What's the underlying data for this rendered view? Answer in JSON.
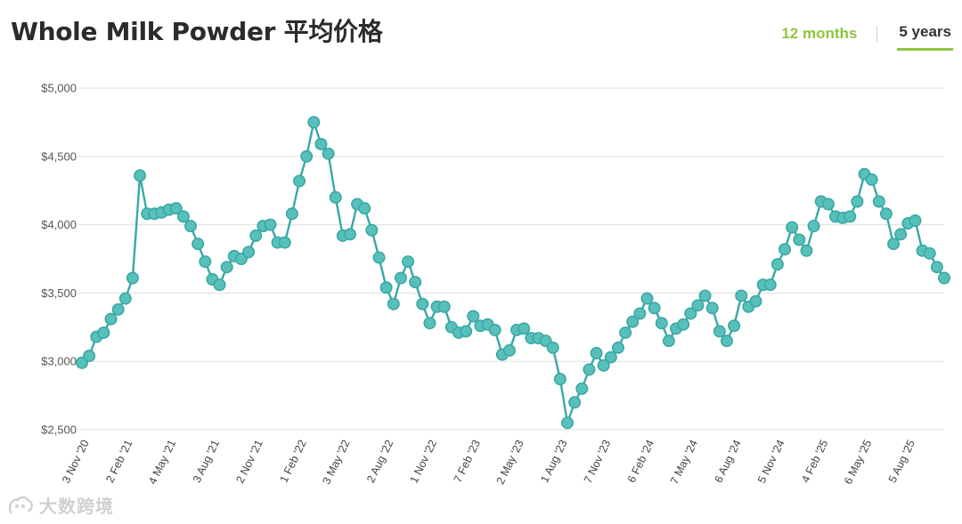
{
  "header": {
    "title": "Whole Milk Powder 平均价格",
    "tabs": [
      {
        "label": "12 months",
        "active": false
      },
      {
        "label": "5 years",
        "active": true
      }
    ]
  },
  "watermark": {
    "text": "大数跨境"
  },
  "colors": {
    "line": "#3aa8a5",
    "marker": "#58c0bb",
    "accent": "#8dc63f",
    "grid": "#e4e4e4"
  },
  "chart_data": {
    "type": "line",
    "title": "",
    "xlabel": "",
    "ylabel": "",
    "ylim": [
      2500,
      5000
    ],
    "yticks": [
      {
        "value": 5000,
        "label": "$5,000"
      },
      {
        "value": 4500,
        "label": "$4,500"
      },
      {
        "value": 4000,
        "label": "$4,000"
      },
      {
        "value": 3500,
        "label": "$3,500"
      },
      {
        "value": 3000,
        "label": "$3,000"
      },
      {
        "value": 2500,
        "label": "$2,500"
      }
    ],
    "xticks": [
      {
        "index": 0,
        "label": "3 Nov '20"
      },
      {
        "index": 6,
        "label": "2 Feb '21"
      },
      {
        "index": 12,
        "label": "4 May '21"
      },
      {
        "index": 18,
        "label": "3 Aug '21"
      },
      {
        "index": 24,
        "label": "2 Nov '21"
      },
      {
        "index": 30,
        "label": "1 Feb '22"
      },
      {
        "index": 36,
        "label": "3 May '22"
      },
      {
        "index": 42,
        "label": "2 Aug '22"
      },
      {
        "index": 48,
        "label": "1 Nov '22"
      },
      {
        "index": 54,
        "label": "7 Feb '23"
      },
      {
        "index": 60,
        "label": "2 May '23"
      },
      {
        "index": 66,
        "label": "1 Aug '23"
      },
      {
        "index": 72,
        "label": "7 Nov '23"
      },
      {
        "index": 78,
        "label": "6 Feb '24"
      },
      {
        "index": 84,
        "label": "7 May '24"
      },
      {
        "index": 90,
        "label": "6 Aug '24"
      },
      {
        "index": 96,
        "label": "5 Nov '24"
      },
      {
        "index": 102,
        "label": "4 Feb '25"
      },
      {
        "index": 108,
        "label": "6 May '25"
      },
      {
        "index": 114,
        "label": "5 Aug '25"
      }
    ],
    "series": [
      {
        "values": [
          2990,
          3040,
          3180,
          3210,
          3310,
          3380,
          3460,
          3610,
          4360,
          4080,
          4080,
          4090,
          4110,
          4120,
          4060,
          3990,
          3860,
          3730,
          3600,
          3560,
          3690,
          3770,
          3750,
          3800,
          3920,
          3990,
          4000,
          3870,
          3870,
          4080,
          4320,
          4500,
          4750,
          4590,
          4520,
          4200,
          3920,
          3930,
          4150,
          4120,
          3960,
          3760,
          3540,
          3420,
          3610,
          3730,
          3580,
          3420,
          3280,
          3400,
          3400,
          3250,
          3210,
          3220,
          3330,
          3260,
          3270,
          3230,
          3050,
          3080,
          3230,
          3240,
          3170,
          3170,
          3150,
          3100,
          2870,
          2550,
          2700,
          2800,
          2940,
          3060,
          2970,
          3030,
          3100,
          3210,
          3290,
          3350,
          3460,
          3390,
          3280,
          3150,
          3240,
          3270,
          3350,
          3410,
          3480,
          3390,
          3220,
          3150,
          3260,
          3480,
          3400,
          3440,
          3560,
          3560,
          3710,
          3820,
          3980,
          3890,
          3810,
          3990,
          4170,
          4150,
          4060,
          4050,
          4060,
          4170,
          4370,
          4330,
          4170,
          4080,
          3860,
          3930,
          4010,
          4030,
          3810,
          3790,
          3690,
          3610
        ]
      }
    ],
    "grid": true,
    "legend": "none"
  }
}
